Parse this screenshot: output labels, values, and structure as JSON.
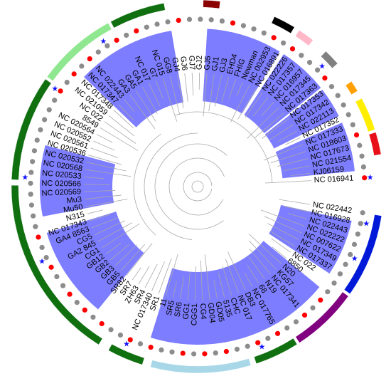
{
  "colors": {
    "highlight": "#6f6fff",
    "branch": "#a8a8a8",
    "dot_red": "#ff0000",
    "dot_gray": "#8c8c8c",
    "star": "#1010ff",
    "segments": {
      "blue": "#0018d8",
      "red": "#e81018",
      "yellow": "#ffee00",
      "orange": "#ff9f00",
      "gray": "#808080",
      "pink": "#ffb8c8",
      "black": "#000000",
      "darkred": "#8b0000",
      "darkgreen": "#107010",
      "lightgreen": "#8fe88f",
      "lightblue": "#a8d8e8",
      "purple": "#800080"
    }
  },
  "tree": {
    "labels": [
      "NC 016941",
      "KJ06159",
      "NC 021554",
      "NC 017673",
      "NC 018603",
      "NC 017333",
      "NC 017352",
      "NC 022113",
      "NC 017342",
      "NC 017353",
      "NC 017363",
      "NC 017345",
      "NC 016957",
      "NC 017357",
      "NC 022226",
      "NC 016891",
      "NC 002953",
      "Newman",
      "FHIG",
      "EHD4",
      "GJ3",
      "GJ1",
      "GJ5",
      "GJ2",
      "GJ7",
      "GJ6",
      "GJ4",
      "GG8",
      "NC 015",
      "G7",
      "NC 017",
      "GA1",
      "GA5",
      "GA3",
      "NC 022443",
      "NC 017347",
      "NC 017348",
      "NC 021059",
      "NC 022",
      "8549",
      "NC 020564",
      "NC 020552",
      "NC 020561",
      "NC 020536",
      "NC 020532",
      "NC 020568",
      "NC 020533",
      "NC 020566",
      "NC 020569",
      "Mu3",
      "Mu50",
      "N315",
      "NC 017343",
      "GA4 8563",
      "CG5",
      "GA2 845",
      "CG1",
      "GB12",
      "GB2",
      "GB3",
      "GB5",
      "SR82",
      "SR7",
      "ZH63",
      "SR4",
      "NC 017340",
      "SR1",
      "11",
      "SR5",
      "SR6",
      "GG1",
      "CGG1",
      "CG4",
      "GD04",
      "GD05",
      "5135",
      "CHC",
      "NC 017",
      "DB3",
      "NC 017765",
      "68",
      "N19",
      "NC 017341",
      "KG57",
      "N20",
      "6850",
      "NC 022",
      "NC 017337",
      "NC 017349",
      "NC 007622",
      "NC 022222",
      "NC 022443",
      "NC 016928",
      "NC 022442"
    ],
    "leaf_marks": [
      "r",
      "g",
      "g",
      "g",
      "r",
      "g",
      "g",
      "g",
      "g",
      "g",
      "r",
      "g",
      "g",
      "g",
      "r",
      "g",
      "r",
      "g",
      "g",
      "g",
      "r",
      "g",
      "g",
      "g",
      "g",
      "r",
      "g",
      "g",
      "g",
      "r",
      "g",
      "r",
      "g",
      "g",
      "r",
      "g",
      "r",
      "g",
      "r",
      "g",
      "g",
      "g",
      "g",
      "g",
      "g",
      "g",
      "g",
      "g",
      "g",
      "g",
      "g",
      "g",
      "r",
      "g",
      "g",
      "r",
      "g",
      "g",
      "r",
      "g",
      "r",
      "g",
      "r",
      "g",
      "g",
      "r",
      "g",
      "r",
      "g",
      "g",
      "r",
      "g",
      "r",
      "g",
      "r",
      "g",
      "g",
      "r",
      "g",
      "r",
      "g",
      "g",
      "r",
      "g",
      "r",
      "g",
      "g",
      "g",
      "g",
      "g",
      "g",
      "g",
      "g",
      "g"
    ],
    "highlight_clades": [
      {
        "from": 0.3,
        "to": 2.4
      },
      {
        "from": 2.7,
        "to": 4.0
      },
      {
        "from": 4.1,
        "to": 6.2
      },
      {
        "from": 6.4,
        "to": 9.6
      },
      {
        "from": 11.1,
        "to": 15.3
      },
      {
        "from": 18.6,
        "to": 21.6
      },
      {
        "from": 22.3,
        "to": 26.2
      },
      {
        "from": 28.7,
        "to": 36.5
      },
      {
        "from": 37.2,
        "to": 39.6
      }
    ],
    "outer_ring": [
      {
        "color": "red",
        "from": 0.8,
        "to": 1.6
      },
      {
        "color": "yellow",
        "from": 1.7,
        "to": 2.9
      },
      {
        "color": "orange",
        "from": 3.2,
        "to": 3.6
      },
      {
        "color": "gray",
        "from": 4.4,
        "to": 5.0
      },
      {
        "color": "pink",
        "from": 5.6,
        "to": 6.2
      },
      {
        "color": "black",
        "from": 6.4,
        "to": 7.2
      },
      {
        "color": "darkred",
        "from": 9.2,
        "to": 9.8
      },
      {
        "color": "darkgreen",
        "from": 11.2,
        "to": 13.2
      },
      {
        "color": "lightgreen",
        "from": 13.3,
        "to": 16.2
      },
      {
        "color": "darkgreen",
        "from": 16.3,
        "to": 20.1
      },
      {
        "color": "darkgreen",
        "from": 20.3,
        "to": 27.0
      },
      {
        "color": "darkgreen",
        "from": 27.4,
        "to": 28.7
      },
      {
        "color": "lightblue",
        "from": 29.0,
        "to": 32.6
      },
      {
        "color": "darkgreen",
        "from": 32.8,
        "to": 34.4
      },
      {
        "color": "purple",
        "from": 34.5,
        "to": 36.9
      },
      {
        "color": "blue",
        "from": 37.0,
        "to": 40.0
      }
    ],
    "stars_at": [
      0.0,
      4.7,
      13.8,
      16.4,
      20.0,
      23.3,
      27.9,
      33.2,
      38.2,
      39.6
    ]
  }
}
